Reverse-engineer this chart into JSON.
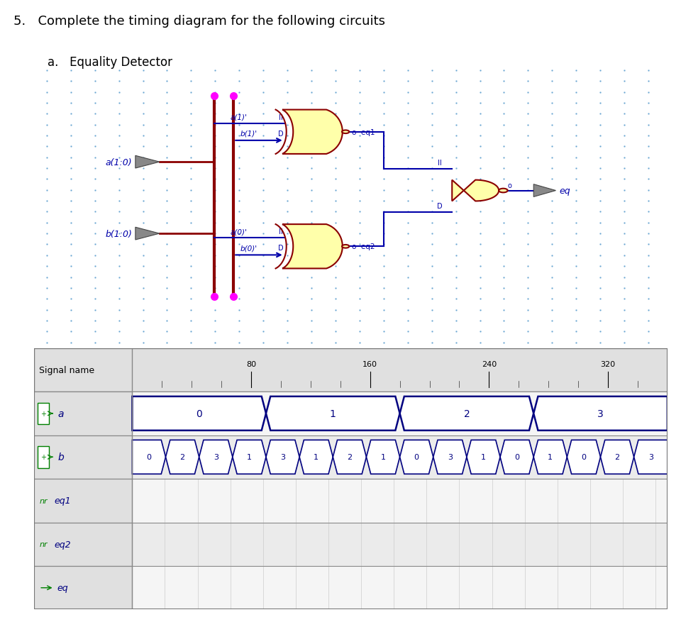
{
  "title_main": "5.   Complete the timing diagram for the following circuits",
  "title_sub": "a.   Equality Detector",
  "bg_color": "#ffffff",
  "circuit_bg": "#ddeeff",
  "dot_color": "#5599cc",
  "axis_ticks": [
    80,
    160,
    240,
    320
  ],
  "a_values": [
    0,
    1,
    2,
    3
  ],
  "a_segs": [
    0,
    90,
    180,
    270,
    360
  ],
  "b_values": [
    0,
    2,
    3,
    1,
    3,
    1,
    2,
    1,
    0,
    3,
    1,
    0,
    1,
    0,
    2,
    3
  ],
  "total_t": 360,
  "navy": "#000080",
  "gate_body_color": "#ffffaa",
  "gate_border_color": "#8B0000",
  "wire_color": "#0000aa",
  "bus_color": "#8B0000",
  "magenta_color": "#ff00ff",
  "label_color": "#0000aa",
  "green_color": "#008000",
  "buf_color": "#888888"
}
